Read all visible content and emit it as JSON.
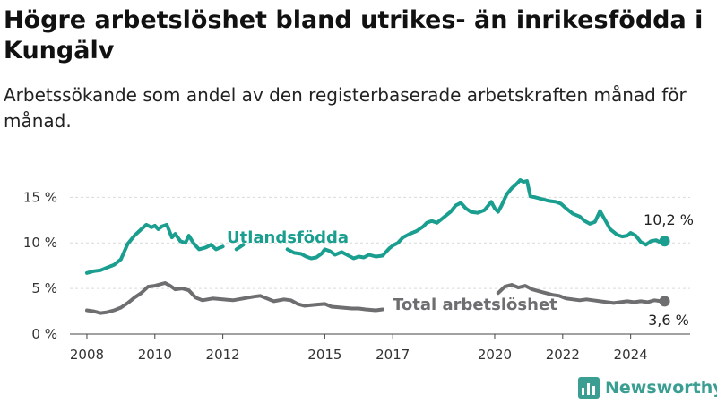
{
  "title": "Högre arbetslöshet bland utrikes- än inrikesfödda i Kungälv",
  "subtitle": "Arbetssökande som andel av den registerbaserade arbetskraften månad för månad.",
  "brand": {
    "name": "Newsworthy",
    "icon": "newsworthy-logo-icon"
  },
  "colors": {
    "foreign": "#1a9e8f",
    "total": "#6e6e70",
    "grid": "#d9d9d9",
    "axis": "#444444"
  },
  "chart_data": {
    "type": "line",
    "title": "Högre arbetslöshet bland utrikes- än inrikesfödda i Kungälv",
    "xlabel": "",
    "ylabel": "",
    "xlim": [
      2007.5,
      2025.75
    ],
    "ylim": [
      0,
      17
    ],
    "grid": "horizontal",
    "legend": "inline",
    "y_ticks": [
      {
        "value": 0,
        "label": "0 %"
      },
      {
        "value": 5,
        "label": "5 %"
      },
      {
        "value": 10,
        "label": "10 %"
      },
      {
        "value": 15,
        "label": "15 %"
      }
    ],
    "x_ticks": [
      {
        "value": 2008,
        "label": "2008"
      },
      {
        "value": 2010,
        "label": "2010"
      },
      {
        "value": 2012,
        "label": "2012"
      },
      {
        "value": 2015,
        "label": "2015"
      },
      {
        "value": 2017,
        "label": "2017"
      },
      {
        "value": 2020,
        "label": "2020"
      },
      {
        "value": 2022,
        "label": "2022"
      },
      {
        "value": 2024,
        "label": "2024"
      }
    ],
    "series": [
      {
        "name": "Utlandsfödda",
        "color": "#1a9e8f",
        "end_label": "10,2 %",
        "segments": [
          [
            [
              2008.0,
              6.7
            ],
            [
              2008.2,
              6.9
            ],
            [
              2008.4,
              7.0
            ],
            [
              2008.6,
              7.3
            ],
            [
              2008.8,
              7.6
            ],
            [
              2009.0,
              8.2
            ],
            [
              2009.2,
              9.9
            ],
            [
              2009.4,
              10.8
            ],
            [
              2009.6,
              11.5
            ],
            [
              2009.75,
              12.0
            ],
            [
              2009.9,
              11.7
            ],
            [
              2010.0,
              11.9
            ],
            [
              2010.1,
              11.5
            ],
            [
              2010.2,
              11.8
            ],
            [
              2010.35,
              12.0
            ],
            [
              2010.5,
              10.6
            ],
            [
              2010.6,
              11.0
            ],
            [
              2010.75,
              10.2
            ],
            [
              2010.9,
              10.0
            ],
            [
              2011.0,
              10.8
            ],
            [
              2011.15,
              9.9
            ],
            [
              2011.3,
              9.3
            ],
            [
              2011.5,
              9.5
            ],
            [
              2011.65,
              9.8
            ],
            [
              2011.8,
              9.3
            ],
            [
              2012.0,
              9.6
            ]
          ],
          [
            [
              2012.4,
              9.3
            ],
            [
              2012.6,
              9.8
            ]
          ],
          [
            [
              2013.9,
              9.3
            ],
            [
              2014.1,
              8.9
            ],
            [
              2014.3,
              8.8
            ],
            [
              2014.45,
              8.5
            ],
            [
              2014.6,
              8.3
            ],
            [
              2014.75,
              8.4
            ],
            [
              2014.9,
              8.8
            ],
            [
              2015.0,
              9.3
            ],
            [
              2015.15,
              9.1
            ],
            [
              2015.3,
              8.7
            ],
            [
              2015.5,
              9.0
            ],
            [
              2015.7,
              8.6
            ],
            [
              2015.85,
              8.3
            ],
            [
              2016.0,
              8.5
            ],
            [
              2016.15,
              8.4
            ],
            [
              2016.3,
              8.7
            ],
            [
              2016.5,
              8.5
            ],
            [
              2016.7,
              8.6
            ],
            [
              2016.9,
              9.4
            ],
            [
              2017.0,
              9.7
            ],
            [
              2017.15,
              10.0
            ],
            [
              2017.3,
              10.6
            ],
            [
              2017.5,
              11.0
            ],
            [
              2017.7,
              11.3
            ],
            [
              2017.9,
              11.8
            ],
            [
              2018.0,
              12.2
            ],
            [
              2018.15,
              12.4
            ],
            [
              2018.3,
              12.2
            ],
            [
              2018.5,
              12.8
            ],
            [
              2018.7,
              13.4
            ],
            [
              2018.85,
              14.1
            ],
            [
              2019.0,
              14.4
            ],
            [
              2019.15,
              13.8
            ],
            [
              2019.3,
              13.4
            ],
            [
              2019.5,
              13.3
            ],
            [
              2019.7,
              13.6
            ],
            [
              2019.9,
              14.5
            ],
            [
              2020.0,
              13.8
            ],
            [
              2020.1,
              13.4
            ],
            [
              2020.2,
              14.1
            ],
            [
              2020.35,
              15.3
            ],
            [
              2020.5,
              16.0
            ],
            [
              2020.65,
              16.5
            ],
            [
              2020.75,
              16.9
            ],
            [
              2020.85,
              16.7
            ],
            [
              2020.95,
              16.8
            ],
            [
              2021.05,
              15.1
            ],
            [
              2021.2,
              15.0
            ],
            [
              2021.4,
              14.8
            ],
            [
              2021.6,
              14.6
            ],
            [
              2021.8,
              14.5
            ],
            [
              2021.95,
              14.3
            ],
            [
              2022.1,
              13.8
            ],
            [
              2022.3,
              13.2
            ],
            [
              2022.5,
              12.9
            ],
            [
              2022.65,
              12.4
            ],
            [
              2022.8,
              12.1
            ],
            [
              2022.95,
              12.3
            ],
            [
              2023.1,
              13.5
            ],
            [
              2023.25,
              12.5
            ],
            [
              2023.4,
              11.5
            ],
            [
              2023.6,
              10.9
            ],
            [
              2023.75,
              10.7
            ],
            [
              2023.9,
              10.8
            ],
            [
              2024.0,
              11.1
            ],
            [
              2024.15,
              10.8
            ],
            [
              2024.3,
              10.1
            ],
            [
              2024.45,
              9.8
            ],
            [
              2024.6,
              10.2
            ],
            [
              2024.75,
              10.3
            ],
            [
              2024.9,
              10.0
            ],
            [
              2025.0,
              10.2
            ]
          ]
        ]
      },
      {
        "name": "Total arbetslöshet",
        "color": "#6e6e70",
        "end_label": "3,6 %",
        "segments": [
          [
            [
              2008.0,
              2.6
            ],
            [
              2008.2,
              2.5
            ],
            [
              2008.4,
              2.3
            ],
            [
              2008.6,
              2.4
            ],
            [
              2008.8,
              2.6
            ],
            [
              2009.0,
              2.9
            ],
            [
              2009.2,
              3.4
            ],
            [
              2009.4,
              4.0
            ],
            [
              2009.6,
              4.5
            ],
            [
              2009.8,
              5.2
            ],
            [
              2010.0,
              5.3
            ],
            [
              2010.2,
              5.5
            ],
            [
              2010.3,
              5.6
            ],
            [
              2010.45,
              5.3
            ],
            [
              2010.6,
              4.9
            ],
            [
              2010.8,
              5.0
            ],
            [
              2011.0,
              4.8
            ],
            [
              2011.2,
              4.0
            ],
            [
              2011.4,
              3.7
            ],
            [
              2011.7,
              3.9
            ],
            [
              2012.0,
              3.8
            ],
            [
              2012.3,
              3.7
            ],
            [
              2012.6,
              3.9
            ],
            [
              2012.9,
              4.1
            ],
            [
              2013.1,
              4.2
            ],
            [
              2013.3,
              3.9
            ],
            [
              2013.5,
              3.6
            ],
            [
              2013.8,
              3.8
            ],
            [
              2014.0,
              3.7
            ],
            [
              2014.2,
              3.3
            ],
            [
              2014.4,
              3.1
            ],
            [
              2014.7,
              3.2
            ],
            [
              2015.0,
              3.3
            ],
            [
              2015.2,
              3.0
            ],
            [
              2015.5,
              2.9
            ],
            [
              2015.8,
              2.8
            ],
            [
              2016.0,
              2.8
            ],
            [
              2016.2,
              2.7
            ],
            [
              2016.5,
              2.6
            ],
            [
              2016.7,
              2.7
            ]
          ],
          [
            [
              2020.1,
              4.5
            ],
            [
              2020.3,
              5.2
            ],
            [
              2020.5,
              5.4
            ],
            [
              2020.7,
              5.1
            ],
            [
              2020.9,
              5.3
            ],
            [
              2021.1,
              4.9
            ],
            [
              2021.3,
              4.7
            ],
            [
              2021.5,
              4.5
            ],
            [
              2021.7,
              4.3
            ],
            [
              2021.9,
              4.2
            ],
            [
              2022.1,
              3.9
            ],
            [
              2022.3,
              3.8
            ],
            [
              2022.5,
              3.7
            ],
            [
              2022.7,
              3.8
            ],
            [
              2022.9,
              3.7
            ],
            [
              2023.1,
              3.6
            ],
            [
              2023.3,
              3.5
            ],
            [
              2023.5,
              3.4
            ],
            [
              2023.7,
              3.5
            ],
            [
              2023.9,
              3.6
            ],
            [
              2024.1,
              3.5
            ],
            [
              2024.3,
              3.6
            ],
            [
              2024.5,
              3.5
            ],
            [
              2024.7,
              3.7
            ],
            [
              2024.9,
              3.6
            ],
            [
              2025.0,
              3.6
            ]
          ]
        ]
      }
    ]
  }
}
